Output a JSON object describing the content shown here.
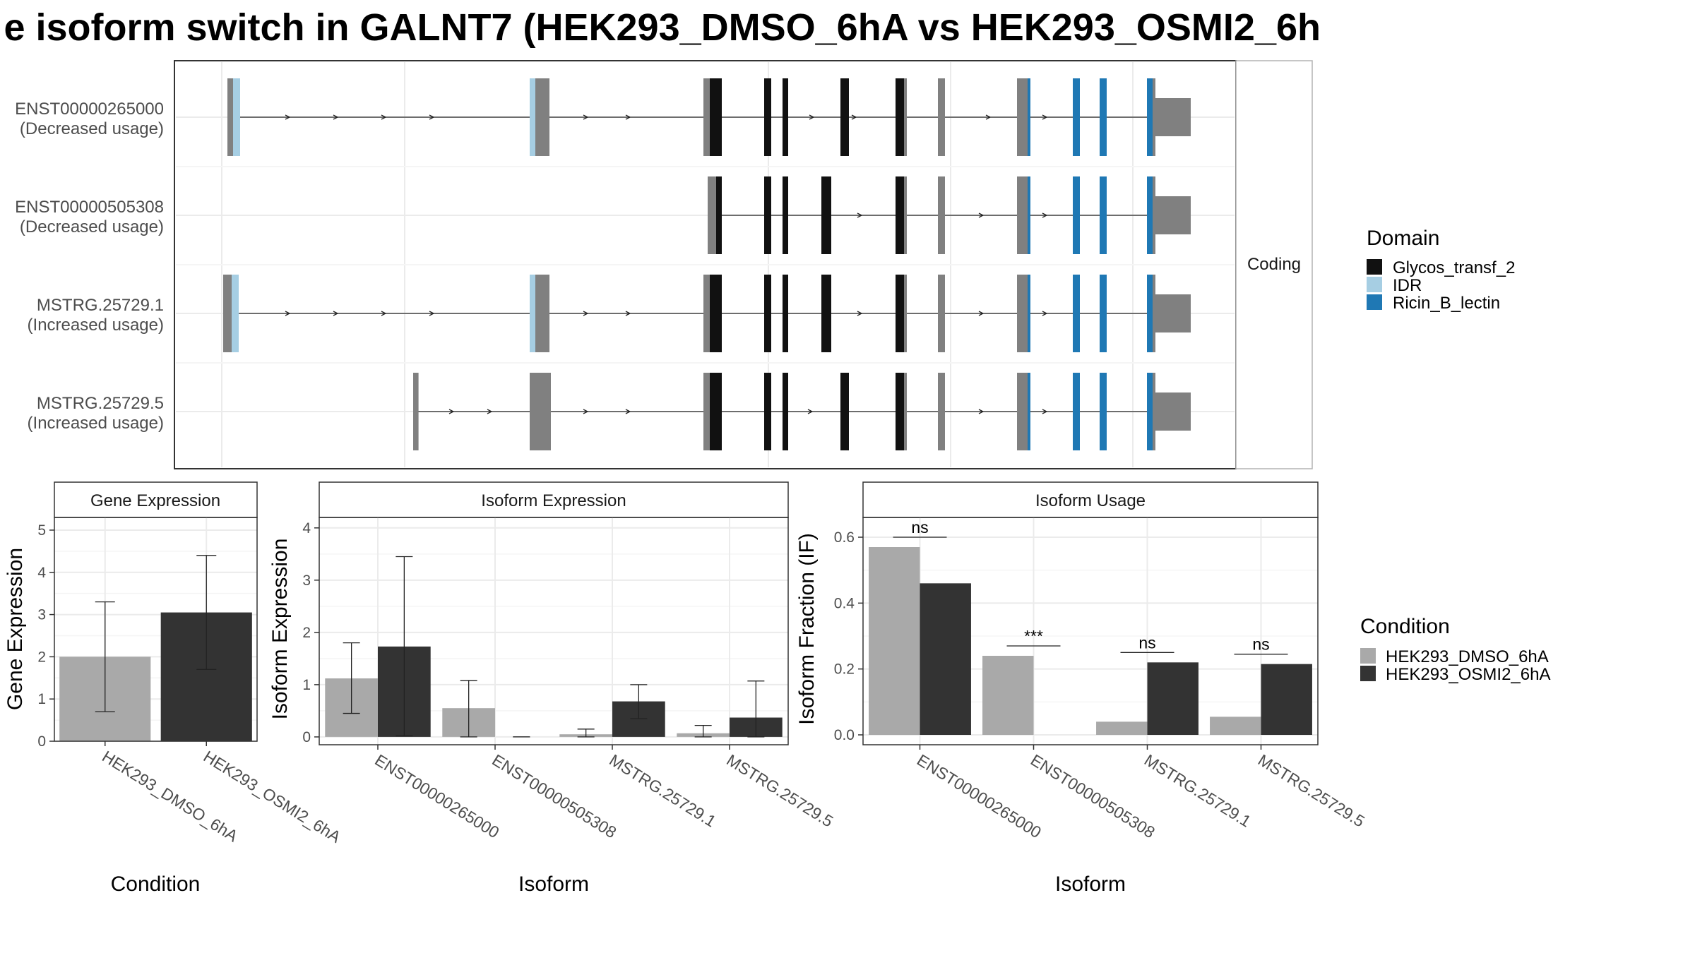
{
  "page": {
    "title": "e isoform switch in GALNT7 (HEK293_DMSO_6hA vs HEK293_OSMI2_6h"
  },
  "chart_data": [
    {
      "type": "transcript-structure",
      "facet_label": "Coding",
      "tracks": [
        {
          "name": "ENST00000265000",
          "usage": "(Decreased usage)"
        },
        {
          "name": "ENST00000505308",
          "usage": "(Decreased usage)"
        },
        {
          "name": "MSTRG.25729.1",
          "usage": "(Increased usage)"
        },
        {
          "name": "MSTRG.25729.5",
          "usage": "(Increased usage)"
        }
      ],
      "legend": {
        "title": "Domain",
        "items": [
          {
            "label": "Glycos_transf_2",
            "color": "#111111"
          },
          {
            "label": "IDR",
            "color": "#a6cee3"
          },
          {
            "label": "Ricin_B_lectin",
            "color": "#1f78b4"
          }
        ]
      }
    },
    {
      "type": "bar",
      "title": "Gene Expression",
      "xlabel": "Condition",
      "ylabel": "Gene Expression",
      "ylim": [
        0,
        5.3
      ],
      "yticks": [
        0,
        1,
        2,
        3,
        4,
        5
      ],
      "categories": [
        "HEK293_DMSO_6hA",
        "HEK293_OSMI2_6hA"
      ],
      "values": [
        2.0,
        3.05
      ],
      "errors": [
        [
          0.7,
          3.3
        ],
        [
          1.7,
          4.4
        ]
      ],
      "colors": [
        "#a9a9a9",
        "#333333"
      ]
    },
    {
      "type": "bar",
      "title": "Isoform Expression",
      "xlabel": "Isoform",
      "ylabel": "Isoform Expression",
      "ylim": [
        -0.15,
        4.2
      ],
      "yticks": [
        0,
        1,
        2,
        3,
        4
      ],
      "categories": [
        "ENST00000265000",
        "ENST00000505308",
        "MSTRG.25729.1",
        "MSTRG.25729.5"
      ],
      "series": [
        {
          "values": [
            1.12,
            0.55,
            0.05,
            0.07
          ],
          "errors": [
            [
              0.45,
              1.8
            ],
            [
              0.0,
              1.08
            ],
            [
              0.0,
              0.15
            ],
            [
              0.0,
              0.22
            ]
          ],
          "color": "#a9a9a9"
        },
        {
          "values": [
            1.73,
            0.0,
            0.68,
            0.37
          ],
          "errors": [
            [
              0.02,
              3.45
            ],
            [
              0.0,
              0.0
            ],
            [
              0.35,
              1.0
            ],
            [
              0.0,
              1.07
            ]
          ],
          "color": "#333333"
        }
      ]
    },
    {
      "type": "bar",
      "title": "Isoform Usage",
      "xlabel": "Isoform",
      "ylabel": "Isoform Fraction (IF)",
      "ylim": [
        -0.03,
        0.66
      ],
      "yticks": [
        "0.0",
        "0.2",
        "0.4",
        "0.6"
      ],
      "categories": [
        "ENST00000265000",
        "ENST00000505308",
        "MSTRG.25729.1",
        "MSTRG.25729.5"
      ],
      "series": [
        {
          "values": [
            0.57,
            0.24,
            0.04,
            0.055
          ],
          "color": "#a9a9a9"
        },
        {
          "values": [
            0.46,
            0.0,
            0.22,
            0.215
          ],
          "color": "#333333"
        }
      ],
      "significance": [
        {
          "label": "ns",
          "y": 0.6
        },
        {
          "label": "***",
          "y": 0.27
        },
        {
          "label": "ns",
          "y": 0.25
        },
        {
          "label": "ns",
          "y": 0.245
        }
      ]
    }
  ],
  "condition_legend": {
    "title": "Condition",
    "items": [
      {
        "label": "HEK293_DMSO_6hA",
        "color": "#a9a9a9"
      },
      {
        "label": "HEK293_OSMI2_6hA",
        "color": "#333333"
      }
    ]
  }
}
